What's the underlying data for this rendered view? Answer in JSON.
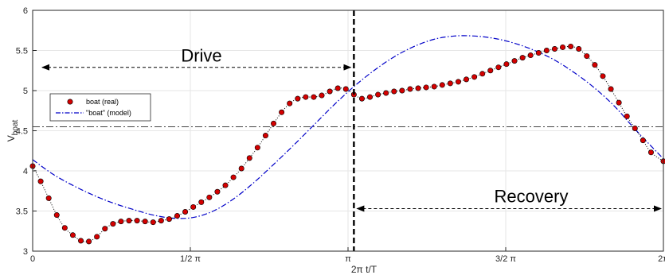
{
  "chart_data": {
    "type": "line",
    "xlabel": "2π t/T",
    "ylabel_main": "V",
    "ylabel_sub": "boat",
    "xlim": [
      0,
      6.2832
    ],
    "ylim": [
      3,
      6
    ],
    "x_tick_values": [
      0,
      1.5708,
      3.1416,
      4.7124,
      6.2832
    ],
    "x_tick_labels": [
      "0",
      "1/2 π",
      "π",
      "3/2 π",
      "2π"
    ],
    "y_ticks": [
      3,
      3.5,
      4,
      4.5,
      5,
      5.5,
      6
    ],
    "y_tick_labels": [
      "3",
      "3.5",
      "4",
      "4.5",
      "5",
      "5.5",
      "6"
    ],
    "grid": true,
    "legend_position": "left",
    "reference_line_y": 4.55,
    "split_line_x": 3.2,
    "colors": {
      "real": "#d40000",
      "real_edge": "#000000",
      "model": "#0000c8",
      "reference": "#444444",
      "grid": "#e6e6e6",
      "axes": "#262626"
    },
    "annotations": {
      "drive": {
        "label": "Drive",
        "y": 5.29,
        "x_from": 0,
        "x_to": 3.2
      },
      "recovery": {
        "label": "Recovery",
        "y": 3.53,
        "x_from": 3.2,
        "x_to": 6.2832
      }
    },
    "series": [
      {
        "name": "boat (real)",
        "style": "markers+dotted",
        "points": [
          [
            0.0,
            4.06
          ],
          [
            0.08,
            3.87
          ],
          [
            0.16,
            3.66
          ],
          [
            0.24,
            3.45
          ],
          [
            0.32,
            3.29
          ],
          [
            0.4,
            3.2
          ],
          [
            0.48,
            3.13
          ],
          [
            0.56,
            3.12
          ],
          [
            0.64,
            3.18
          ],
          [
            0.72,
            3.28
          ],
          [
            0.8,
            3.34
          ],
          [
            0.88,
            3.37
          ],
          [
            0.96,
            3.38
          ],
          [
            1.04,
            3.38
          ],
          [
            1.12,
            3.37
          ],
          [
            1.2,
            3.36
          ],
          [
            1.28,
            3.38
          ],
          [
            1.36,
            3.4
          ],
          [
            1.44,
            3.44
          ],
          [
            1.52,
            3.49
          ],
          [
            1.6,
            3.55
          ],
          [
            1.68,
            3.61
          ],
          [
            1.76,
            3.67
          ],
          [
            1.84,
            3.74
          ],
          [
            1.92,
            3.82
          ],
          [
            2.0,
            3.92
          ],
          [
            2.08,
            4.03
          ],
          [
            2.16,
            4.16
          ],
          [
            2.24,
            4.29
          ],
          [
            2.32,
            4.44
          ],
          [
            2.4,
            4.59
          ],
          [
            2.48,
            4.73
          ],
          [
            2.56,
            4.84
          ],
          [
            2.64,
            4.9
          ],
          [
            2.72,
            4.92
          ],
          [
            2.8,
            4.92
          ],
          [
            2.88,
            4.94
          ],
          [
            2.96,
            4.99
          ],
          [
            3.04,
            5.03
          ],
          [
            3.12,
            5.02
          ],
          [
            3.2,
            4.95
          ],
          [
            3.28,
            4.9
          ],
          [
            3.36,
            4.92
          ],
          [
            3.44,
            4.95
          ],
          [
            3.52,
            4.97
          ],
          [
            3.6,
            4.99
          ],
          [
            3.68,
            5.0
          ],
          [
            3.76,
            5.02
          ],
          [
            3.84,
            5.03
          ],
          [
            3.92,
            5.04
          ],
          [
            4.0,
            5.05
          ],
          [
            4.08,
            5.07
          ],
          [
            4.16,
            5.09
          ],
          [
            4.24,
            5.11
          ],
          [
            4.32,
            5.14
          ],
          [
            4.4,
            5.17
          ],
          [
            4.48,
            5.21
          ],
          [
            4.56,
            5.25
          ],
          [
            4.64,
            5.29
          ],
          [
            4.72,
            5.33
          ],
          [
            4.8,
            5.37
          ],
          [
            4.88,
            5.41
          ],
          [
            4.96,
            5.44
          ],
          [
            5.04,
            5.47
          ],
          [
            5.12,
            5.5
          ],
          [
            5.2,
            5.52
          ],
          [
            5.28,
            5.54
          ],
          [
            5.36,
            5.55
          ],
          [
            5.44,
            5.52
          ],
          [
            5.52,
            5.43
          ],
          [
            5.6,
            5.32
          ],
          [
            5.68,
            5.18
          ],
          [
            5.76,
            5.02
          ],
          [
            5.84,
            4.85
          ],
          [
            5.92,
            4.68
          ],
          [
            6.0,
            4.53
          ],
          [
            6.08,
            4.38
          ],
          [
            6.16,
            4.23
          ],
          [
            6.2832,
            4.12
          ]
        ]
      },
      {
        "name": "\"boat\" (model)",
        "style": "dashdot",
        "points": [
          [
            0.0,
            4.14
          ],
          [
            0.2,
            3.96
          ],
          [
            0.4,
            3.82
          ],
          [
            0.6,
            3.7
          ],
          [
            0.8,
            3.6
          ],
          [
            1.0,
            3.52
          ],
          [
            1.2,
            3.45
          ],
          [
            1.4,
            3.41
          ],
          [
            1.6,
            3.42
          ],
          [
            1.8,
            3.5
          ],
          [
            2.0,
            3.65
          ],
          [
            2.2,
            3.85
          ],
          [
            2.4,
            4.08
          ],
          [
            2.6,
            4.32
          ],
          [
            2.8,
            4.57
          ],
          [
            3.0,
            4.82
          ],
          [
            3.2,
            5.05
          ],
          [
            3.4,
            5.25
          ],
          [
            3.6,
            5.42
          ],
          [
            3.8,
            5.55
          ],
          [
            4.0,
            5.64
          ],
          [
            4.2,
            5.68
          ],
          [
            4.4,
            5.68
          ],
          [
            4.6,
            5.65
          ],
          [
            4.8,
            5.59
          ],
          [
            5.0,
            5.5
          ],
          [
            5.2,
            5.38
          ],
          [
            5.4,
            5.22
          ],
          [
            5.6,
            5.03
          ],
          [
            5.8,
            4.8
          ],
          [
            6.0,
            4.52
          ],
          [
            6.2832,
            4.15
          ]
        ]
      }
    ]
  }
}
